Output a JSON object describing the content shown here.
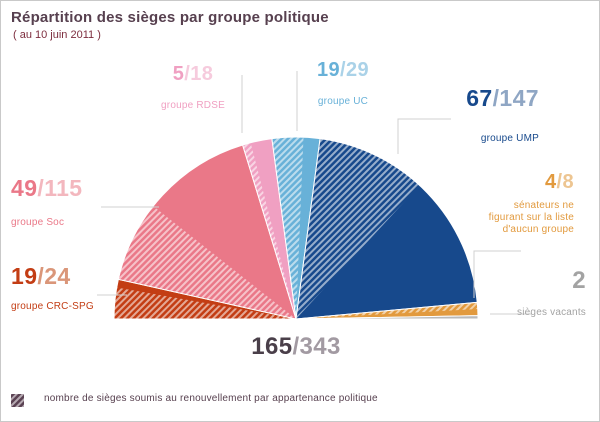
{
  "title": "Répartition des sièges par groupe politique",
  "subtitle": "( au 10 juin 2011 )",
  "fraction_sep": "/",
  "colors": {
    "title": "#57404f",
    "subtitle": "#7d2d3e",
    "legend_text": "#57404f",
    "legend_swatch": "#5a4152",
    "leader_line": "#d0d0d0",
    "total_num": "#4a3f49",
    "total_den": "#a29aa2"
  },
  "legend": {
    "text": "nombre de sièges soumis au renouvellement par appartenance politique"
  },
  "chart_data": {
    "type": "pie",
    "variant": "semicircle-hemicycle",
    "note": "hatched part of each slice = seats up for renewal",
    "total": {
      "renewed": 165,
      "seats": 343
    },
    "groups": [
      {
        "id": "crc-spg",
        "label": "groupe CRC-SPG",
        "renewed": 19,
        "seats": 24,
        "color": "#c33d14",
        "light_color": "#da9679"
      },
      {
        "id": "soc",
        "label": "groupe Soc",
        "renewed": 49,
        "seats": 115,
        "color": "#ea7888",
        "light_color": "#f3b7be"
      },
      {
        "id": "rdse",
        "label": "groupe RDSE",
        "renewed": 5,
        "seats": 18,
        "color": "#f0a0c2",
        "light_color": "#f6cbdd"
      },
      {
        "id": "uc",
        "label": "groupe UC",
        "renewed": 19,
        "seats": 29,
        "color": "#68b1d8",
        "light_color": "#aad2e8"
      },
      {
        "id": "ump",
        "label": "groupe UMP",
        "renewed": 67,
        "seats": 147,
        "color": "#17498c",
        "light_color": "#8fa6c4"
      },
      {
        "id": "aucun",
        "label": "sénateurs ne figurant sur la liste d'aucun groupe",
        "renewed": 4,
        "seats": 8,
        "color": "#e29a3e",
        "light_color": "#edc591"
      },
      {
        "id": "vacants",
        "label": "sièges vacants",
        "renewed": null,
        "seats": 2,
        "color": "#b9b9b9",
        "light_color": "#c6c6c6",
        "num_color": "#a3a3a3"
      }
    ]
  }
}
